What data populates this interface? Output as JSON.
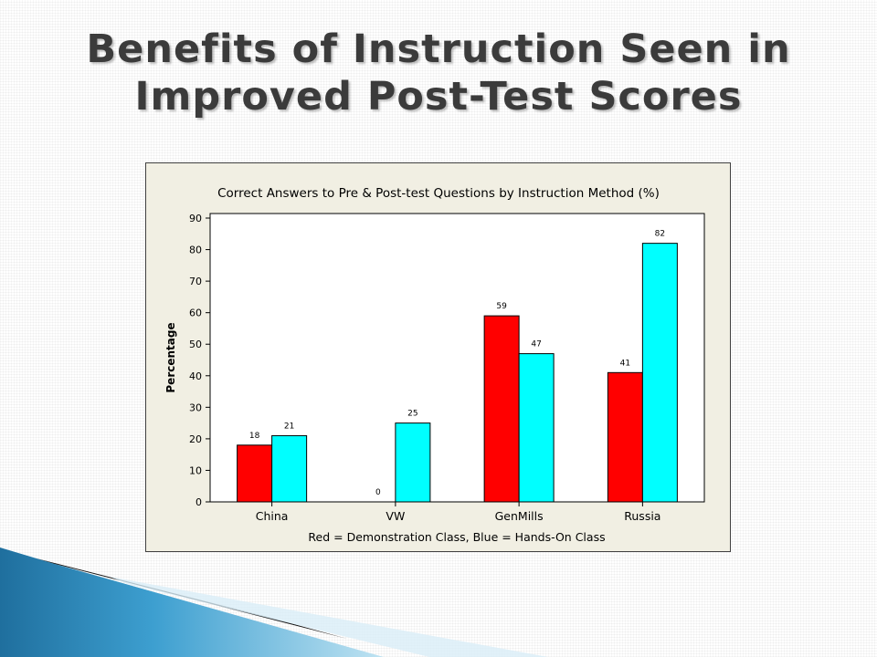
{
  "slide": {
    "title_line1": "Benefits of Instruction Seen in",
    "title_line2": "Improved Post-Test Scores"
  },
  "chart_data": {
    "type": "bar",
    "title": "Correct Answers to  Pre & Post-test Questions by Instruction Method (%)",
    "xlabel": "Red = Demonstration Class, Blue = Hands-On Class",
    "ylabel": "Percentage",
    "ylim": [
      0,
      90
    ],
    "yticks": [
      0,
      10,
      20,
      30,
      40,
      50,
      60,
      70,
      80,
      90
    ],
    "categories": [
      "China",
      "VW",
      "GenMills",
      "Russia"
    ],
    "series": [
      {
        "color": "#ff0000",
        "values": [
          18,
          0,
          59,
          41
        ]
      },
      {
        "color": "#00ffff",
        "values": [
          21,
          25,
          47,
          82
        ]
      }
    ],
    "grid": false
  },
  "colors": {
    "title": "#3b3b3b",
    "chart_background": "#f1efe3",
    "plot_background": "#ffffff",
    "accent_deco": "#2a86b8"
  }
}
